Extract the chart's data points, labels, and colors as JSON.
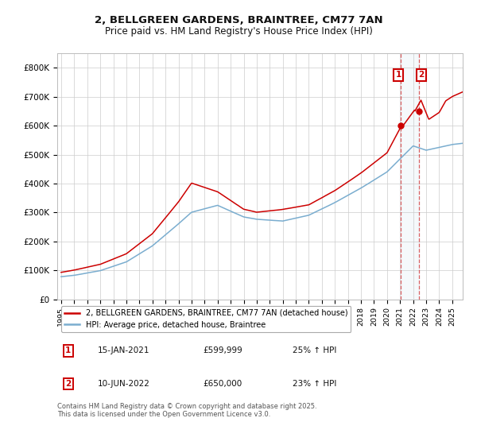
{
  "title": "2, BELLGREEN GARDENS, BRAINTREE, CM77 7AN",
  "subtitle": "Price paid vs. HM Land Registry's House Price Index (HPI)",
  "ylabel_ticks": [
    "£0",
    "£100K",
    "£200K",
    "£300K",
    "£400K",
    "£500K",
    "£600K",
    "£700K",
    "£800K"
  ],
  "ytick_values": [
    0,
    100000,
    200000,
    300000,
    400000,
    500000,
    600000,
    700000,
    800000
  ],
  "ylim": [
    0,
    850000
  ],
  "xlim_start": 1994.7,
  "xlim_end": 2025.8,
  "purchase1_date": 2021.04,
  "purchase1_price": 599999,
  "purchase2_date": 2022.44,
  "purchase2_price": 650000,
  "legend_label_red": "2, BELLGREEN GARDENS, BRAINTREE, CM77 7AN (detached house)",
  "legend_label_blue": "HPI: Average price, detached house, Braintree",
  "annotation1_label": "1",
  "annotation1_date": "15-JAN-2021",
  "annotation1_price": "£599,999",
  "annotation1_hpi": "25% ↑ HPI",
  "annotation2_label": "2",
  "annotation2_date": "10-JUN-2022",
  "annotation2_price": "£650,000",
  "annotation2_hpi": "23% ↑ HPI",
  "footer": "Contains HM Land Registry data © Crown copyright and database right 2025.\nThis data is licensed under the Open Government Licence v3.0.",
  "red_color": "#cc0000",
  "blue_color": "#7aadcf",
  "bg_color": "#ffffff",
  "grid_color": "#cccccc",
  "box_color": "#cc0000"
}
